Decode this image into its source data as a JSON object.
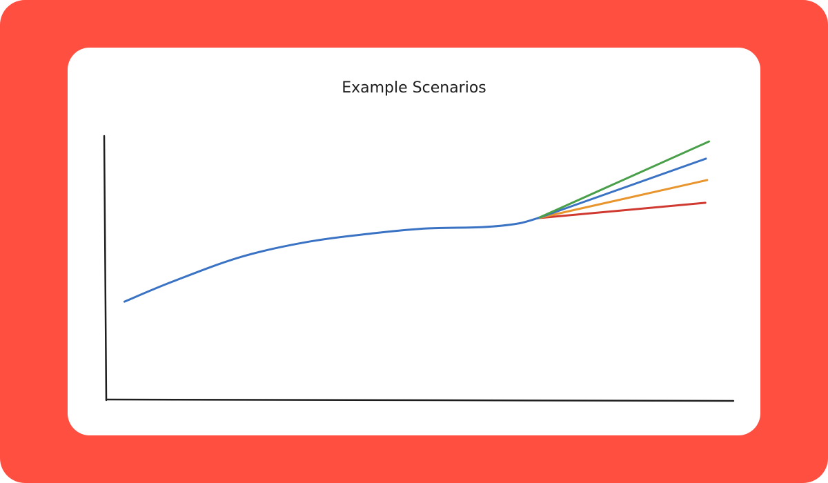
{
  "chart_data": {
    "type": "line",
    "title": "Example Scenarios",
    "xlim": [
      0,
      100
    ],
    "ylim": [
      0,
      100
    ],
    "series": [
      {
        "color": "#3a72c4",
        "x": [
          2.8,
          10.5,
          21.5,
          32.5,
          43.5,
          51.2,
          60.0,
          65.5,
          68.8
        ],
        "values": [
          37.3,
          44.9,
          54.3,
          60.1,
          63.4,
          65.0,
          65.5,
          66.8,
          68.9
        ]
      },
      {
        "color": "#4aa04a",
        "x": [
          68.8,
          96.1
        ],
        "values": [
          68.9,
          97.9
        ]
      },
      {
        "color": "#3a72c4",
        "x": [
          68.8,
          95.6
        ],
        "values": [
          68.9,
          91.4
        ]
      },
      {
        "color": "#e8952e",
        "x": [
          68.8,
          95.8
        ],
        "values": [
          68.9,
          83.3
        ]
      },
      {
        "color": "#d0392f",
        "x": [
          68.8,
          95.5
        ],
        "values": [
          68.9,
          74.7
        ]
      }
    ]
  }
}
